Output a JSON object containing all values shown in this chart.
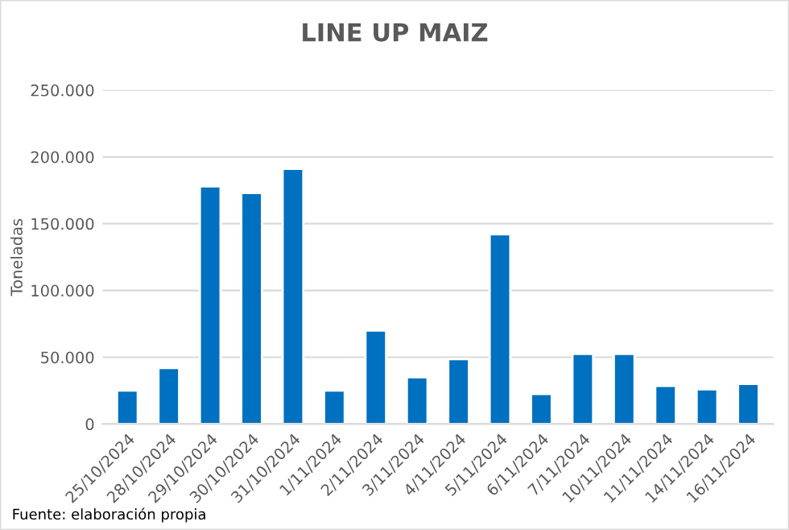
{
  "chart_data": {
    "type": "bar",
    "title": "LINE UP MAIZ",
    "ylabel": "Toneladas",
    "categories": [
      "25/10/2024",
      "28/10/2024",
      "29/10/2024",
      "30/10/2024",
      "31/10/2024",
      "1/11/2024",
      "2/11/2024",
      "3/11/2024",
      "4/11/2024",
      "5/11/2024",
      "6/11/2024",
      "7/11/2024",
      "10/11/2024",
      "11/11/2024",
      "14/11/2024",
      "16/11/2024"
    ],
    "series": [
      {
        "color": "#0070c0",
        "values": [
          25000,
          42000,
          178000,
          173000,
          191000,
          25000,
          70000,
          35000,
          48500,
          142000,
          22500,
          52500,
          52500,
          28500,
          26000,
          30000
        ]
      }
    ],
    "ylim": [
      0,
      250000
    ],
    "yticks": [
      {
        "value": 0,
        "label": "0"
      },
      {
        "value": 50000,
        "label": "50.000"
      },
      {
        "value": 100000,
        "label": "100.000"
      },
      {
        "value": 150000,
        "label": "150.000"
      },
      {
        "value": 200000,
        "label": "200.000"
      },
      {
        "value": 250000,
        "label": "250.000"
      }
    ],
    "grid": "y",
    "annotations": [
      "Fuente: elaboración propia"
    ]
  }
}
